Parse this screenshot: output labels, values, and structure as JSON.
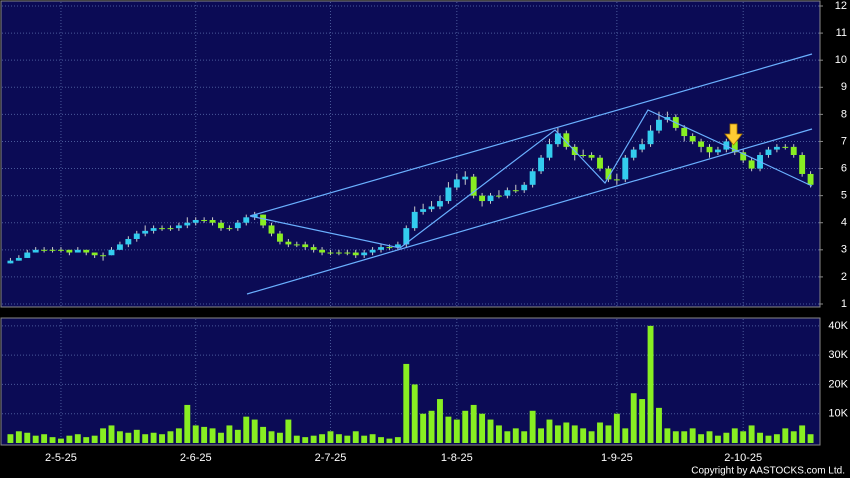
{
  "chart_data": {
    "type": "candlestick",
    "credit": "Copyright by AASTOCKS.com Ltd.",
    "up_color": "#33ccee",
    "down_color": "#88ee22",
    "volume_color": "#88ee22",
    "grid": true,
    "xlim": [
      -1,
      96
    ],
    "xticks": [
      {
        "value": 6,
        "label": "2-5-25"
      },
      {
        "value": 22,
        "label": "2-6-25"
      },
      {
        "value": 38,
        "label": "2-7-25"
      },
      {
        "value": 53,
        "label": "1-8-25"
      },
      {
        "value": 72,
        "label": "1-9-25"
      },
      {
        "value": 87,
        "label": "2-10-25"
      }
    ],
    "ylim": [
      1,
      12
    ],
    "yticks": [
      1,
      2,
      3,
      4,
      5,
      6,
      7,
      8,
      9,
      10,
      11,
      12
    ],
    "volume_ylim": [
      0,
      42000
    ],
    "volume_yticks": [
      {
        "value": 10000,
        "label": "10K"
      },
      {
        "value": 20000,
        "label": "20K"
      },
      {
        "value": 30000,
        "label": "30K"
      },
      {
        "value": 40000,
        "label": "40K"
      }
    ],
    "open": [
      2.5,
      2.6,
      2.7,
      2.9,
      3.0,
      3.0,
      3.0,
      3.0,
      2.9,
      3.0,
      2.9,
      2.8,
      2.8,
      3.0,
      3.2,
      3.4,
      3.6,
      3.7,
      3.8,
      3.8,
      3.8,
      3.9,
      4.0,
      4.1,
      4.1,
      4.0,
      3.8,
      3.8,
      4.0,
      4.2,
      4.3,
      3.9,
      3.6,
      3.3,
      3.2,
      3.2,
      3.1,
      3.0,
      2.9,
      2.9,
      2.9,
      2.9,
      2.8,
      2.9,
      3.0,
      3.1,
      3.1,
      3.2,
      3.8,
      4.4,
      4.5,
      4.6,
      4.8,
      5.3,
      5.6,
      5.7,
      5.0,
      4.8,
      5.0,
      5.0,
      5.2,
      5.2,
      5.4,
      5.9,
      6.4,
      6.9,
      7.3,
      6.8,
      6.5,
      6.5,
      6.4,
      6.0,
      5.6,
      5.6,
      6.4,
      6.7,
      6.9,
      7.4,
      7.8,
      7.9,
      7.5,
      7.2,
      7.0,
      6.8,
      6.6,
      6.7,
      7.0,
      6.6,
      6.3,
      6.0,
      6.5,
      6.7,
      6.8,
      6.8,
      6.5,
      5.8
    ],
    "high": [
      2.7,
      2.8,
      3.0,
      3.1,
      3.1,
      3.1,
      3.1,
      3.0,
      3.1,
      3.0,
      2.9,
      2.9,
      3.1,
      3.3,
      3.5,
      3.7,
      3.9,
      3.9,
      3.9,
      3.9,
      4.0,
      4.2,
      4.2,
      4.2,
      4.2,
      4.1,
      3.9,
      4.1,
      4.3,
      4.4,
      4.3,
      4.0,
      3.7,
      3.4,
      3.3,
      3.3,
      3.2,
      3.1,
      3.0,
      3.0,
      3.0,
      3.0,
      3.0,
      3.1,
      3.2,
      3.2,
      3.3,
      3.9,
      4.6,
      4.7,
      4.8,
      5.0,
      5.5,
      5.8,
      5.9,
      5.8,
      5.1,
      5.1,
      5.2,
      5.3,
      5.4,
      5.5,
      6.0,
      6.5,
      7.1,
      7.5,
      7.4,
      6.9,
      6.7,
      6.6,
      6.5,
      6.1,
      5.8,
      6.5,
      6.8,
      7.1,
      7.6,
      8.1,
      8.1,
      8.0,
      7.6,
      7.3,
      7.1,
      6.9,
      6.8,
      7.1,
      7.1,
      6.7,
      6.4,
      6.6,
      6.8,
      6.9,
      6.9,
      6.9,
      6.6,
      5.9
    ],
    "low": [
      2.5,
      2.6,
      2.7,
      2.9,
      2.9,
      2.9,
      2.9,
      2.8,
      2.9,
      2.8,
      2.7,
      2.6,
      2.8,
      3.0,
      3.1,
      3.3,
      3.5,
      3.6,
      3.7,
      3.7,
      3.7,
      3.8,
      3.9,
      4.0,
      3.9,
      3.7,
      3.7,
      3.7,
      3.9,
      4.1,
      3.8,
      3.5,
      3.2,
      3.1,
      3.1,
      3.0,
      2.9,
      2.8,
      2.8,
      2.8,
      2.8,
      2.7,
      2.7,
      2.8,
      2.9,
      3.0,
      3.0,
      3.1,
      3.7,
      4.3,
      4.4,
      4.5,
      4.7,
      5.2,
      5.4,
      4.9,
      4.6,
      4.7,
      4.9,
      4.9,
      5.1,
      5.1,
      5.3,
      5.8,
      6.3,
      6.8,
      6.7,
      6.3,
      6.4,
      6.3,
      5.9,
      5.5,
      5.4,
      5.5,
      6.3,
      6.6,
      6.8,
      7.3,
      7.7,
      7.4,
      7.0,
      6.9,
      6.6,
      6.4,
      6.5,
      6.6,
      6.5,
      6.2,
      5.9,
      5.9,
      6.4,
      6.6,
      6.7,
      6.4,
      5.7,
      5.3
    ],
    "close": [
      2.6,
      2.7,
      2.9,
      3.0,
      3.0,
      3.0,
      3.0,
      2.9,
      3.0,
      2.9,
      2.8,
      2.8,
      3.0,
      3.2,
      3.4,
      3.6,
      3.7,
      3.8,
      3.8,
      3.8,
      3.9,
      4.0,
      4.1,
      4.1,
      4.0,
      3.8,
      3.8,
      4.0,
      4.2,
      4.3,
      3.9,
      3.6,
      3.3,
      3.2,
      3.2,
      3.1,
      3.0,
      2.9,
      2.9,
      2.9,
      2.9,
      2.8,
      2.9,
      3.0,
      3.1,
      3.1,
      3.2,
      3.8,
      4.4,
      4.5,
      4.6,
      4.8,
      5.3,
      5.6,
      5.7,
      5.0,
      4.8,
      5.0,
      5.0,
      5.2,
      5.2,
      5.4,
      5.9,
      6.4,
      6.9,
      7.3,
      6.8,
      6.5,
      6.5,
      6.4,
      6.0,
      5.6,
      5.6,
      6.4,
      6.7,
      6.9,
      7.4,
      7.8,
      7.9,
      7.5,
      7.2,
      7.0,
      6.8,
      6.6,
      6.7,
      7.0,
      6.6,
      6.3,
      6.0,
      6.5,
      6.7,
      6.8,
      6.8,
      6.5,
      5.8,
      5.4
    ],
    "volume": [
      3000,
      4000,
      3500,
      2500,
      3000,
      2000,
      1500,
      2500,
      3000,
      2000,
      2500,
      5000,
      6000,
      4000,
      3500,
      4500,
      3000,
      3500,
      3000,
      4000,
      5000,
      13000,
      6000,
      5500,
      5000,
      3500,
      6000,
      4500,
      9000,
      8000,
      5500,
      4000,
      3500,
      8000,
      2500,
      2000,
      2500,
      3000,
      4000,
      3000,
      2500,
      4000,
      2500,
      3000,
      2000,
      1500,
      2000,
      27000,
      20000,
      10000,
      11000,
      15000,
      9000,
      8000,
      11000,
      13000,
      10000,
      8000,
      6000,
      4000,
      5000,
      4000,
      11000,
      5000,
      8000,
      6000,
      7000,
      6000,
      5000,
      4000,
      7000,
      6000,
      10000,
      5000,
      17000,
      15000,
      40000,
      12000,
      5000,
      4000,
      4000,
      5000,
      3000,
      4000,
      2500,
      3500,
      5000,
      4000,
      6000,
      3500,
      2500,
      3000,
      5000,
      4000,
      6000,
      3000
    ]
  }
}
